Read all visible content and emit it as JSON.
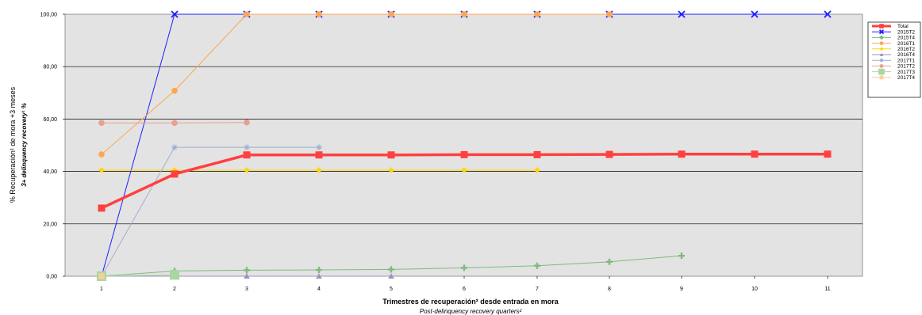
{
  "chart_data": {
    "type": "line",
    "x": [
      1,
      2,
      3,
      4,
      5,
      6,
      7,
      8,
      9,
      10,
      11
    ],
    "xlabel": "Trimestres de recuperación² desde entrada en mora",
    "xlabel_sub": "Post-delinquency recovery quarters²",
    "ylabel": "% Recuperación¹ de mora +3 meses",
    "ylabel_sub": "3+ delinquency recovery¹ %",
    "ylim": [
      0,
      100
    ],
    "yticks": [
      "0,00",
      "20,00",
      "40,00",
      "60,00",
      "80,00",
      "100,00"
    ],
    "xticks": [
      "1",
      "2",
      "3",
      "4",
      "5",
      "6",
      "7",
      "8",
      "9",
      "10",
      "11"
    ],
    "grid": true,
    "legend_position": "right",
    "series": [
      {
        "name": "Total",
        "color": "#ff4040",
        "marker": "square",
        "values": [
          26,
          39,
          46.3,
          46.3,
          46.3,
          46.4,
          46.4,
          46.5,
          46.6,
          46.6,
          46.6
        ]
      },
      {
        "name": "2015T2",
        "color": "#1f1fff",
        "marker": "x",
        "values": [
          0,
          100,
          100,
          100,
          100,
          100,
          100,
          100,
          100,
          100,
          100
        ]
      },
      {
        "name": "2015T4",
        "color": "#7fba7f",
        "marker": "plus",
        "values": [
          0,
          2,
          2.3,
          2.4,
          2.6,
          3.2,
          4,
          5.5,
          7.8,
          null,
          null
        ]
      },
      {
        "name": "2016T1",
        "color": "#ffa54f",
        "marker": "circle",
        "values": [
          46.5,
          70.8,
          100,
          100,
          100,
          100,
          100,
          100,
          null,
          null,
          null
        ]
      },
      {
        "name": "2016T2",
        "color": "#ffd700",
        "marker": "diamond",
        "values": [
          40.5,
          40.5,
          40.5,
          40.5,
          40.5,
          40.5,
          40.5,
          null,
          null,
          null,
          null
        ]
      },
      {
        "name": "2016T4",
        "color": "#a090c0",
        "marker": "triangle",
        "values": [
          0,
          0,
          0,
          0,
          0,
          null,
          null,
          null,
          null,
          null,
          null
        ]
      },
      {
        "name": "2017T1",
        "color": "#a0aed0",
        "marker": "star",
        "values": [
          0,
          49.2,
          49.2,
          49.2,
          null,
          null,
          null,
          null,
          null,
          null,
          null
        ]
      },
      {
        "name": "2017T2",
        "color": "#e8a090",
        "marker": "circle",
        "values": [
          58.5,
          58.5,
          58.7,
          null,
          null,
          null,
          null,
          null,
          null,
          null,
          null
        ]
      },
      {
        "name": "2017T3",
        "color": "#a8d8a0",
        "marker": "bigsquare",
        "values": [
          0,
          0.5,
          null,
          null,
          null,
          null,
          null,
          null,
          null,
          null,
          null
        ]
      },
      {
        "name": "2017T4",
        "color": "#ffcc99",
        "marker": "square",
        "values": [
          0,
          null,
          null,
          null,
          null,
          null,
          null,
          null,
          null,
          null,
          null
        ]
      }
    ]
  }
}
